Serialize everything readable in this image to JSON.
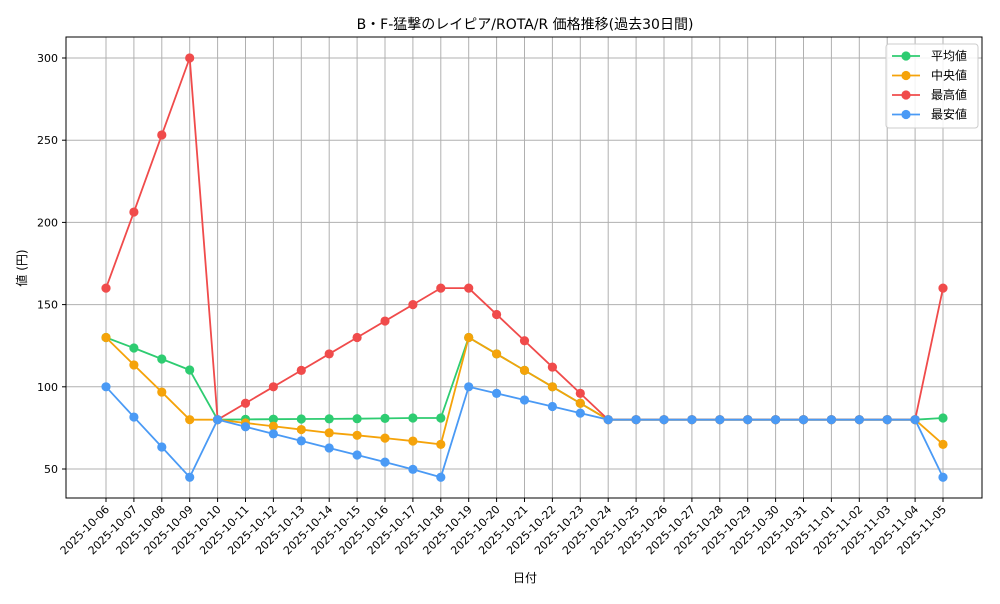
{
  "chart_data": {
    "type": "line",
    "title": "B・F-猛撃のレイピア/ROTA/R 価格推移(過去30日間)",
    "xlabel": "日付",
    "ylabel": "値 (円)",
    "ylim": [
      32,
      313
    ],
    "yticks": [
      50,
      100,
      150,
      200,
      250,
      300
    ],
    "grid": true,
    "legend_position": "upper right",
    "categories": [
      "2025-10-06",
      "2025-10-07",
      "2025-10-08",
      "2025-10-09",
      "2025-10-10",
      "2025-10-11",
      "2025-10-12",
      "2025-10-13",
      "2025-10-14",
      "2025-10-15",
      "2025-10-16",
      "2025-10-17",
      "2025-10-18",
      "2025-10-19",
      "2025-10-20",
      "2025-10-21",
      "2025-10-22",
      "2025-10-23",
      "2025-10-24",
      "2025-10-25",
      "2025-10-26",
      "2025-10-27",
      "2025-10-28",
      "2025-10-29",
      "2025-10-30",
      "2025-10-31",
      "2025-11-01",
      "2025-11-02",
      "2025-11-03",
      "2025-11-04",
      "2025-11-05"
    ],
    "series": [
      {
        "name": "平均値",
        "color": "#2ecc71",
        "values": [
          130,
          123.6,
          116.9,
          110.2,
          80,
          80.2,
          80.3,
          80.4,
          80.5,
          80.6,
          80.8,
          81,
          81,
          130,
          120,
          110,
          100,
          90,
          80,
          80,
          80,
          80,
          80,
          80,
          80,
          80,
          80,
          80,
          80,
          80,
          81
        ]
      },
      {
        "name": "中央値",
        "color": "#f5a30a",
        "values": [
          130,
          113.3,
          96.8,
          80,
          80,
          78,
          76,
          74,
          72,
          70.5,
          68.8,
          67,
          65,
          130,
          120,
          110,
          100,
          90,
          80,
          80,
          80,
          80,
          80,
          80,
          80,
          80,
          80,
          80,
          80,
          80,
          65
        ]
      },
      {
        "name": "最高値",
        "color": "#f04b4b",
        "values": [
          160,
          206.3,
          253.2,
          300,
          80,
          90,
          100,
          110,
          120,
          130,
          140,
          150,
          160,
          160,
          144,
          128,
          112,
          96,
          80,
          80,
          80,
          80,
          80,
          80,
          80,
          80,
          80,
          80,
          80,
          80,
          160
        ]
      },
      {
        "name": "最安値",
        "color": "#4a9af5",
        "values": [
          100,
          81.6,
          63.4,
          45,
          80,
          75.7,
          71.4,
          67.1,
          62.8,
          58.5,
          54.2,
          49.8,
          45,
          100,
          96,
          92,
          88,
          84,
          80,
          80,
          80,
          80,
          80,
          80,
          80,
          80,
          80,
          80,
          80,
          80,
          45
        ]
      }
    ]
  }
}
